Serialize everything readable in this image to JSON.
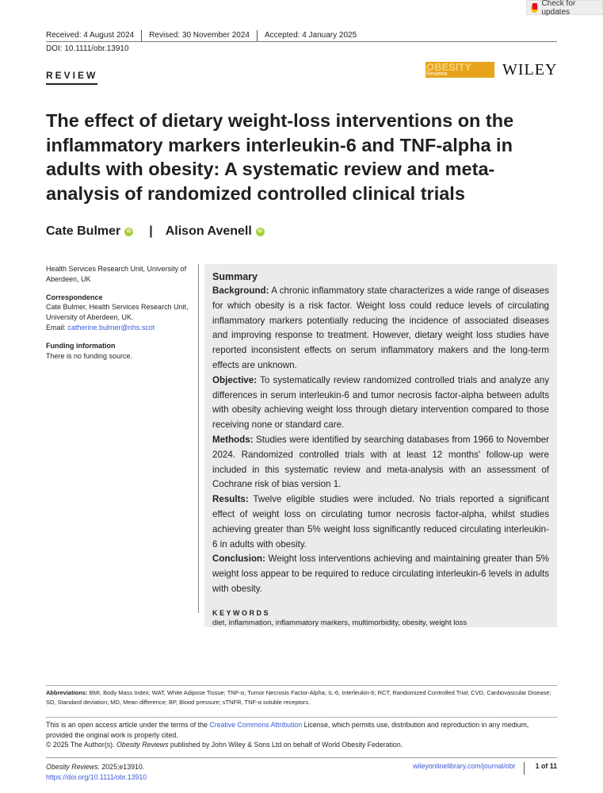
{
  "check_updates": "Check for updates",
  "dates": {
    "received": "Received: 4 August 2024",
    "revised": "Revised: 30 November 2024",
    "accepted": "Accepted: 4 January 2025"
  },
  "doi": "DOI: 10.1111/obr.13910",
  "section": "REVIEW",
  "logos": {
    "journal_main": "OBESITY",
    "journal_sub": "Reviews",
    "publisher": "WILEY"
  },
  "title": "The effect of dietary weight-loss interventions on the inflammatory markers interleukin-6 and TNF-alpha in adults with obesity: A systematic review and meta-analysis of randomized controlled clinical trials",
  "authors": [
    "Cate Bulmer",
    "Alison Avenell"
  ],
  "author_separator": "|",
  "orcid_label": "iD",
  "affiliation": "Health Services Research Unit, University of Aberdeen, UK",
  "correspondence": {
    "heading": "Correspondence",
    "text": "Cate Bulmer, Health Services Research Unit, University of Aberdeen, UK.",
    "email_label": "Email: ",
    "email": "catherine.bulmer@nhs.scot"
  },
  "funding": {
    "heading": "Funding information",
    "text": "There is no funding source."
  },
  "summary": {
    "heading": "Summary",
    "sections": [
      {
        "label": "Background:",
        "text": " A chronic inflammatory state characterizes a wide range of diseases for which obesity is a risk factor. Weight loss could reduce levels of circulating inflammatory markers potentially reducing the incidence of associated diseases and improving response to treatment. However, dietary weight loss studies have reported inconsistent effects on serum inflammatory makers and the long-term effects are unknown."
      },
      {
        "label": "Objective:",
        "text": " To systematically review randomized controlled trials and analyze any differences in serum interleukin-6 and tumor necrosis factor-alpha between adults with obesity achieving weight loss through dietary intervention compared to those receiving none or standard care."
      },
      {
        "label": "Methods:",
        "text": " Studies were identified by searching databases from 1966 to November 2024. Randomized controlled trials with at least 12 months' follow-up were included in this systematic review and meta-analysis with an assessment of Cochrane risk of bias version 1."
      },
      {
        "label": "Results:",
        "text": " Twelve eligible studies were included. No trials reported a significant effect of weight loss on circulating tumor necrosis factor-alpha, whilst studies achieving greater than 5% weight loss significantly reduced circulating interleukin-6 in adults with obesity."
      },
      {
        "label": "Conclusion:",
        "text": " Weight loss interventions achieving and maintaining greater than 5% weight loss appear to be required to reduce circulating interleukin-6 levels in adults with obesity."
      }
    ],
    "keywords_heading": "KEYWORDS",
    "keywords": "diet, inflammation, inflammatory markers, multimorbidity, obesity, weight loss"
  },
  "abbreviations": {
    "label": "Abbreviations:",
    "text": " BMI, Body Mass Index; WAT, White Adipose Tissue; TNF-α, Tumor Necrosis Factor-Alpha; IL-6, Interleukin-6; RCT, Randomized Controlled Trial; CVD, Cardiovascular Disease; SD, Standard deviation; MD, Mean difference; BP, Blood pressure; sTNFR, TNF-α soluble receptors."
  },
  "open_access": {
    "pre": "This is an open access article under the terms of the ",
    "link": "Creative Commons Attribution",
    "post": " License, which permits use, distribution and reproduction in any medium, provided the original work is properly cited.",
    "copyright_pre": "© 2025 The Author(s). ",
    "copyright_journal": "Obesity Reviews",
    "copyright_post": " published by John Wiley & Sons Ltd on behalf of World Obesity Federation."
  },
  "footer": {
    "journal": "Obesity Reviews.",
    "citation": " 2025;e13910.",
    "doi_link": "https://doi.org/10.1111/obr.13910",
    "site": "wileyonlinelibrary.com/journal/obr",
    "page": "1 of 11"
  }
}
